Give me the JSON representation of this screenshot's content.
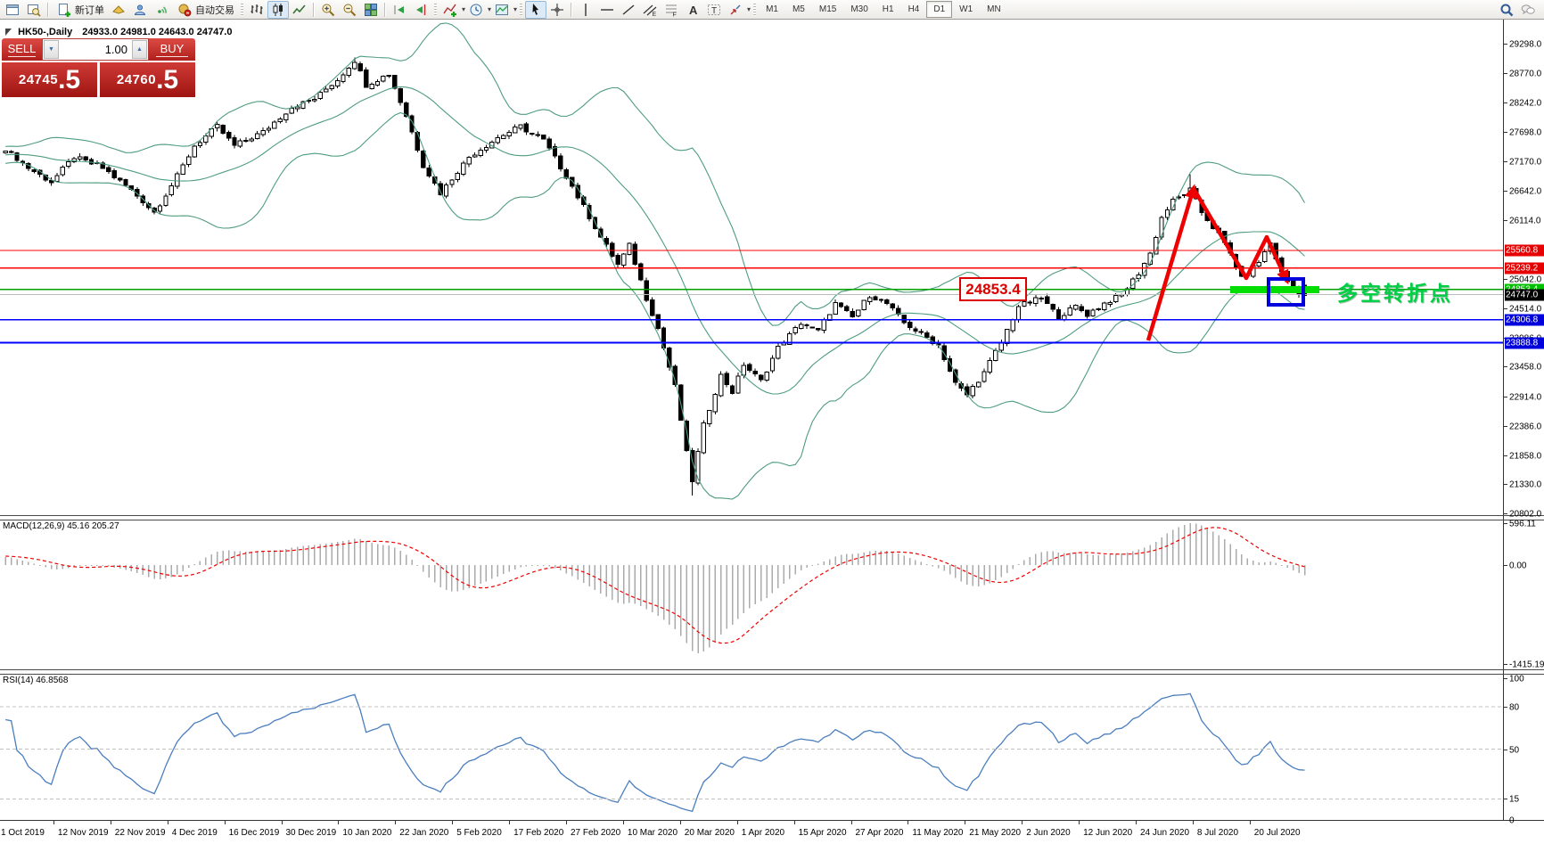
{
  "toolbar": {
    "new_order_label": "新订单",
    "autotrading_label": "自动交易",
    "timeframes": [
      "M1",
      "M5",
      "M15",
      "M30",
      "H1",
      "H4",
      "D1",
      "W1",
      "MN"
    ],
    "selected_timeframe": "D1"
  },
  "chart": {
    "title_symbol": "HK50-,Daily",
    "title_ohlc": "24933.0 24981.0 24643.0 24747.0"
  },
  "trade_panel": {
    "sell_label": "SELL",
    "buy_label": "BUY",
    "volume": "1.00",
    "sell_price_int": "24745",
    "sell_price_frac": ".5",
    "buy_price_int": "24760",
    "buy_price_frac": ".5"
  },
  "price_axis": {
    "ticks": [
      "29298.0",
      "28770.0",
      "28242.0",
      "27698.0",
      "27170.0",
      "26642.0",
      "26114.0",
      "25042.0",
      "24514.0",
      "23986.0",
      "23458.0",
      "22914.0",
      "22386.0",
      "21858.0",
      "21330.0",
      "20802.0"
    ],
    "badges": [
      {
        "value": "25560.8",
        "price": 25560.8,
        "bg": "#e60000",
        "fg": "#ffffff"
      },
      {
        "value": "25239.2",
        "price": 25239.2,
        "bg": "#e60000",
        "fg": "#ffffff"
      },
      {
        "value": "24853.4",
        "price": 24853.4,
        "bg": "#00c000",
        "fg": "#ffffff"
      },
      {
        "value": "24747.0",
        "price": 24747.0,
        "bg": "#000000",
        "fg": "#ffffff"
      },
      {
        "value": "24306.8",
        "price": 24306.8,
        "bg": "#0000dd",
        "fg": "#ffffff"
      },
      {
        "value": "23888.8",
        "price": 23888.8,
        "bg": "#0000dd",
        "fg": "#ffffff"
      }
    ]
  },
  "levels": [
    {
      "price": 25560.8,
      "color": "#ff0000",
      "w": 1.2
    },
    {
      "price": 25239.2,
      "color": "#ff0000",
      "w": 1.2
    },
    {
      "price": 24853.4,
      "color": "#00a000",
      "w": 1.7
    },
    {
      "price": 24760.5,
      "color": "#bdbdbd",
      "w": 1.2
    },
    {
      "price": 24306.8,
      "color": "#0000ff",
      "w": 1.4
    },
    {
      "price": 23888.8,
      "color": "#0000ff",
      "w": 2.0
    }
  ],
  "annotations": {
    "price_flag": "24853.4",
    "note_text": "多空转折点"
  },
  "macd": {
    "label": "MACD(12,26,9) 45.16 205.27",
    "axis_ticks": [
      {
        "text": "596.11",
        "v": 596.11
      },
      {
        "text": "0.00",
        "v": 0
      },
      {
        "text": "-1415.19",
        "v": -1415.19
      }
    ]
  },
  "rsi": {
    "label": "RSI(14) 46.8568",
    "axis_ticks": [
      {
        "text": "100",
        "v": 100
      },
      {
        "text": "80",
        "v": 80
      },
      {
        "text": "50",
        "v": 50
      },
      {
        "text": "15",
        "v": 15
      },
      {
        "text": "0",
        "v": 0
      }
    ],
    "levels": [
      80,
      50,
      15
    ]
  },
  "date_axis": [
    "1 Oct 2019",
    "12 Nov 2019",
    "22 Nov 2019",
    "4 Dec 2019",
    "16 Dec 2019",
    "30 Dec 2019",
    "10 Jan 2020",
    "22 Jan 2020",
    "5 Feb 2020",
    "17 Feb 2020",
    "27 Feb 2020",
    "10 Mar 2020",
    "20 Mar 2020",
    "1 Apr 2020",
    "15 Apr 2020",
    "27 Apr 2020",
    "11 May 2020",
    "21 May 2020",
    "2 Jun 2020",
    "12 Jun 2020",
    "24 Jun 2020",
    "8 Jul 2020",
    "20 Jul 2020"
  ],
  "chart_data": {
    "type": "candlestick",
    "symbol": "HK50-",
    "timeframe": "Daily",
    "n_candles": 228,
    "last_candle": {
      "open": 24933.0,
      "high": 24981.0,
      "low": 24643.0,
      "close": 24747.0
    },
    "y_range": [
      20802.0,
      29298.0
    ],
    "indicators": [
      {
        "name": "Bollinger Bands",
        "color": "#4f9d7e"
      },
      {
        "name": "MACD",
        "params": "12,26,9",
        "main": 45.16,
        "signal": 205.27,
        "range": [
          -1415.19,
          596.11
        ]
      },
      {
        "name": "RSI",
        "period": 14,
        "value": 46.8568,
        "levels": [
          15,
          50,
          80
        ]
      }
    ],
    "close_keypoints": [
      [
        0,
        27400
      ],
      [
        4,
        27050
      ],
      [
        8,
        26800
      ],
      [
        12,
        27250
      ],
      [
        17,
        27050
      ],
      [
        22,
        26650
      ],
      [
        26,
        26250
      ],
      [
        30,
        26900
      ],
      [
        33,
        27450
      ],
      [
        37,
        27800
      ],
      [
        40,
        27450
      ],
      [
        45,
        27700
      ],
      [
        50,
        28150
      ],
      [
        54,
        28300
      ],
      [
        58,
        28650
      ],
      [
        61,
        29000
      ],
      [
        63,
        28550
      ],
      [
        67,
        28750
      ],
      [
        70,
        28000
      ],
      [
        73,
        27100
      ],
      [
        76,
        26600
      ],
      [
        81,
        27250
      ],
      [
        86,
        27600
      ],
      [
        90,
        27800
      ],
      [
        94,
        27550
      ],
      [
        98,
        26900
      ],
      [
        101,
        26350
      ],
      [
        104,
        25800
      ],
      [
        107,
        25300
      ],
      [
        109,
        25650
      ],
      [
        112,
        24700
      ],
      [
        114,
        24150
      ],
      [
        117,
        23100
      ],
      [
        119,
        21900
      ],
      [
        120,
        21400
      ],
      [
        122,
        22400
      ],
      [
        125,
        23300
      ],
      [
        127,
        23000
      ],
      [
        129,
        23500
      ],
      [
        132,
        23200
      ],
      [
        135,
        23800
      ],
      [
        139,
        24250
      ],
      [
        142,
        24100
      ],
      [
        145,
        24600
      ],
      [
        148,
        24350
      ],
      [
        151,
        24750
      ],
      [
        154,
        24600
      ],
      [
        157,
        24250
      ],
      [
        160,
        24050
      ],
      [
        163,
        23850
      ],
      [
        166,
        23150
      ],
      [
        168,
        22950
      ],
      [
        171,
        23350
      ],
      [
        174,
        23900
      ],
      [
        177,
        24550
      ],
      [
        181,
        24700
      ],
      [
        184,
        24350
      ],
      [
        187,
        24550
      ],
      [
        189,
        24400
      ],
      [
        192,
        24600
      ],
      [
        195,
        24750
      ],
      [
        198,
        25150
      ],
      [
        200,
        25500
      ],
      [
        202,
        26150
      ],
      [
        204,
        26450
      ],
      [
        207,
        26650
      ],
      [
        209,
        26250
      ],
      [
        212,
        25850
      ],
      [
        214,
        25500
      ],
      [
        216,
        25050
      ],
      [
        219,
        25350
      ],
      [
        221,
        25700
      ],
      [
        223,
        25150
      ],
      [
        225,
        24850
      ],
      [
        227,
        24747
      ]
    ]
  }
}
